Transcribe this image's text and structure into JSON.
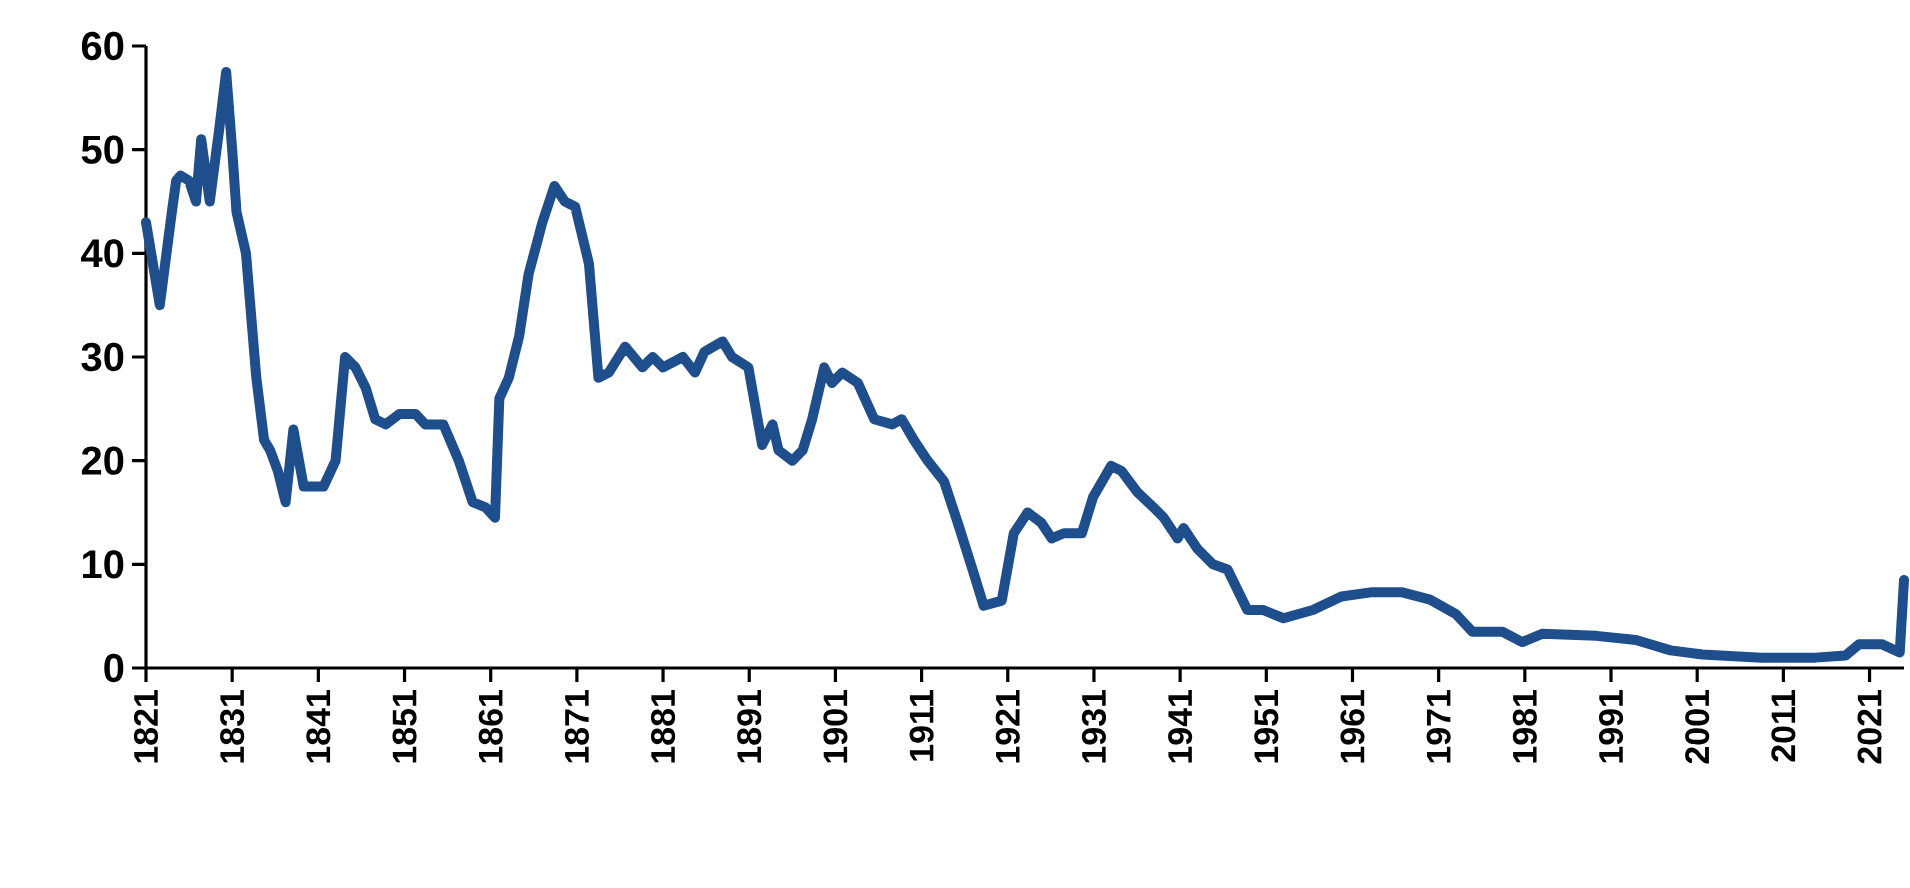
{
  "chart_data": {
    "type": "line",
    "x": [
      1821,
      1822.6,
      1824,
      1824.5,
      1825,
      1826,
      1826.8,
      1827.4,
      1828.4,
      1829.5,
      1830.3,
      1831,
      1831.5,
      1832.6,
      1833.8,
      1834.7,
      1835.4,
      1836.3,
      1837.2,
      1838.1,
      1839.3,
      1841.6,
      1843,
      1844.1,
      1845.3,
      1846.5,
      1847.6,
      1848.8,
      1850.4,
      1852.3,
      1853.4,
      1855.5,
      1857.3,
      1858.9,
      1860.4,
      1861.5,
      1862,
      1863.1,
      1864.3,
      1865.4,
      1867,
      1868.4,
      1869.6,
      1870.8,
      1872.4,
      1873.5,
      1874.7,
      1876.6,
      1878.6,
      1879.8,
      1881,
      1883.3,
      1884.7,
      1885.8,
      1887.9,
      1889,
      1890.9,
      1892.5,
      1893.7,
      1894.4,
      1896,
      1897.2,
      1898.3,
      1899.7,
      1900.6,
      1901.8,
      1903.6,
      1905.5,
      1907.6,
      1908.7,
      1910.1,
      1911.7,
      1913.6,
      1915.2,
      1917.1,
      1918.2,
      1920.3,
      1921.7,
      1923.3,
      1924.9,
      1926.1,
      1927.5,
      1929.6,
      1930.9,
      1933,
      1934.2,
      1936,
      1937.9,
      1939.1,
      1940.7,
      1941.4,
      1943,
      1944.8,
      1946.5,
      1948.8,
      1950.6,
      1953,
      1956.4,
      1959.7,
      1963.1,
      1966.8,
      1970,
      1973,
      1974.9,
      1978.4,
      1980.7,
      1983,
      1989.3,
      1993.9,
      1997.9,
      2001.6,
      2008.5,
      2014.7,
      2018.2,
      2019.8,
      2022.4,
      2024.5,
      2025
    ],
    "values": [
      43,
      35,
      44,
      47,
      47.5,
      47,
      45,
      51,
      45,
      52,
      57.5,
      50,
      44,
      40,
      28,
      22,
      21,
      19,
      16,
      23,
      17.5,
      17.5,
      20,
      30,
      29,
      27,
      24,
      23.5,
      24.5,
      24.5,
      23.5,
      23.5,
      20,
      16,
      15.5,
      14.5,
      26,
      28,
      32,
      38,
      43,
      46.5,
      45,
      44.5,
      39,
      28,
      28.5,
      31,
      29,
      30,
      29,
      30,
      28.5,
      30.5,
      31.5,
      30,
      29,
      21.5,
      23.5,
      21,
      20,
      21,
      24,
      29,
      27.5,
      28.5,
      27.5,
      24,
      23.5,
      24,
      22,
      20,
      18,
      14,
      9,
      6,
      6.5,
      13,
      15,
      14,
      12.5,
      13,
      13,
      16.5,
      19.5,
      19,
      17,
      15.5,
      14.5,
      12.5,
      13.5,
      11.5,
      10,
      9.5,
      5.6,
      5.6,
      4.8,
      5.6,
      6.9,
      7.3,
      7.3,
      6.6,
      5.2,
      3.5,
      3.5,
      2.5,
      3.3,
      3.1,
      2.7,
      1.7,
      1.3,
      1,
      1,
      1.2,
      2.3,
      2.3,
      1.5,
      8.5
    ],
    "color": "#1f4e8c",
    "xlim": [
      1821,
      2025
    ],
    "xticks": [
      1821,
      1831,
      1841,
      1851,
      1861,
      1871,
      1881,
      1891,
      1901,
      1911,
      1921,
      1931,
      1941,
      1951,
      1961,
      1971,
      1981,
      1991,
      2001,
      2011,
      2021
    ],
    "ylim": [
      0,
      60
    ],
    "yticks": [
      0,
      10,
      20,
      30,
      40,
      50,
      60
    ],
    "marker": "none",
    "line_style": "solid"
  }
}
